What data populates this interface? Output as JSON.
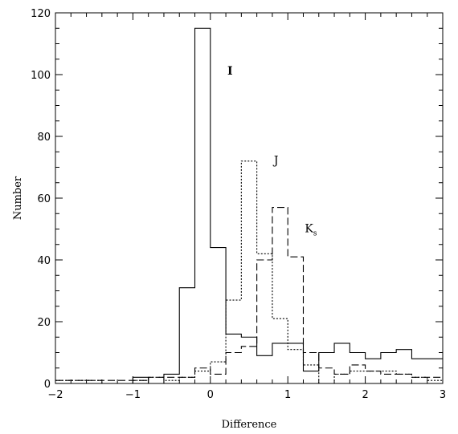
{
  "chart_data": {
    "type": "histogram",
    "xlabel": "Difference",
    "ylabel": "Number",
    "xlim": [
      -2,
      3
    ],
    "ylim": [
      0,
      120
    ],
    "x_ticks": [
      {
        "value": -2,
        "label": "−2"
      },
      {
        "value": -1,
        "label": "−1"
      },
      {
        "value": 0,
        "label": "0"
      },
      {
        "value": 1,
        "label": "1"
      },
      {
        "value": 2,
        "label": "2"
      },
      {
        "value": 3,
        "label": "3"
      }
    ],
    "y_ticks": [
      {
        "value": 0,
        "label": "0"
      },
      {
        "value": 20,
        "label": "20"
      },
      {
        "value": 40,
        "label": "40"
      },
      {
        "value": 60,
        "label": "60"
      },
      {
        "value": 80,
        "label": "80"
      },
      {
        "value": 100,
        "label": "100"
      },
      {
        "value": 120,
        "label": "120"
      }
    ],
    "bin_width": 0.2,
    "bin_edges": [
      -2.0,
      -1.8,
      -1.6,
      -1.4,
      -1.2,
      -1.0,
      -0.8,
      -0.6,
      -0.4,
      -0.2,
      0.0,
      0.2,
      0.4,
      0.6,
      0.8,
      1.0,
      1.2,
      1.4,
      1.6,
      1.8,
      2.0,
      2.2,
      2.4,
      2.6,
      2.8,
      3.0
    ],
    "series": [
      {
        "label": "I",
        "style": "solid",
        "label_x": 0.22,
        "label_y": 100,
        "values": [
          0,
          0,
          0,
          0,
          0,
          2,
          0,
          3,
          31,
          115,
          44,
          16,
          15,
          9,
          13,
          13,
          4,
          10,
          13,
          10,
          8,
          10,
          11,
          8,
          8
        ]
      },
      {
        "label": "J",
        "style": "dotted",
        "label_x": 0.82,
        "label_y": 71,
        "values": [
          1,
          1,
          1,
          0,
          0,
          1,
          2,
          1,
          2,
          4,
          7,
          27,
          72,
          42,
          21,
          11,
          6,
          0,
          3,
          4,
          4,
          4,
          3,
          2,
          1
        ]
      },
      {
        "label": "K",
        "subscript": "s",
        "style": "dashed",
        "label_x": 1.22,
        "label_y": 49,
        "values": [
          1,
          1,
          1,
          1,
          1,
          1,
          2,
          2,
          2,
          5,
          3,
          10,
          12,
          40,
          57,
          41,
          10,
          5,
          3,
          6,
          4,
          3,
          3,
          2,
          2
        ]
      }
    ]
  }
}
